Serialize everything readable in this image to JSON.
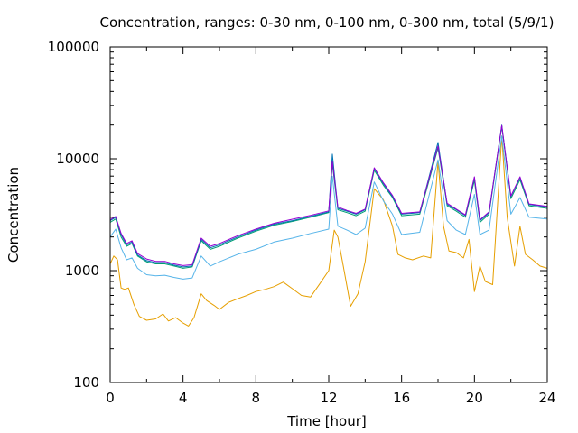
{
  "chart_data": {
    "type": "line",
    "title": "Concentration, ranges: 0-30 nm, 0-100 nm, 0-300 nm, total (5/9/1)",
    "xlabel": "Time [hour]",
    "ylabel": "Concentration",
    "xlim": [
      0,
      24
    ],
    "ylim": [
      100,
      100000
    ],
    "y_scale": "log",
    "x_ticks": [
      0,
      4,
      8,
      12,
      16,
      20,
      24
    ],
    "x_tick_labels": [
      "0",
      "4",
      "8",
      "12",
      "16",
      "20",
      "24"
    ],
    "y_ticks": [
      100,
      1000,
      10000,
      100000
    ],
    "y_tick_labels": [
      "100",
      "1000",
      "10000",
      "100000"
    ],
    "grid": false,
    "legend": "none",
    "series": [
      {
        "color": "#e69f00",
        "points": [
          [
            0,
            1150
          ],
          [
            0.2,
            1350
          ],
          [
            0.4,
            1250
          ],
          [
            0.6,
            700
          ],
          [
            0.8,
            680
          ],
          [
            1,
            700
          ],
          [
            1.3,
            500
          ],
          [
            1.6,
            390
          ],
          [
            2,
            360
          ],
          [
            2.5,
            370
          ],
          [
            2.9,
            410
          ],
          [
            3.2,
            355
          ],
          [
            3.6,
            380
          ],
          [
            4,
            340
          ],
          [
            4.3,
            320
          ],
          [
            4.6,
            380
          ],
          [
            5,
            620
          ],
          [
            5.3,
            540
          ],
          [
            5.7,
            490
          ],
          [
            6,
            450
          ],
          [
            6.5,
            520
          ],
          [
            7,
            560
          ],
          [
            7.5,
            600
          ],
          [
            8,
            650
          ],
          [
            8.5,
            680
          ],
          [
            9,
            720
          ],
          [
            9.5,
            790
          ],
          [
            10,
            690
          ],
          [
            10.5,
            600
          ],
          [
            11,
            580
          ],
          [
            11.5,
            760
          ],
          [
            12,
            1000
          ],
          [
            12.3,
            2300
          ],
          [
            12.5,
            2000
          ],
          [
            12.8,
            1100
          ],
          [
            13.2,
            480
          ],
          [
            13.6,
            620
          ],
          [
            14,
            1200
          ],
          [
            14.5,
            5400
          ],
          [
            15,
            4300
          ],
          [
            15.5,
            2500
          ],
          [
            15.8,
            1400
          ],
          [
            16.2,
            1300
          ],
          [
            16.6,
            1250
          ],
          [
            17.2,
            1350
          ],
          [
            17.6,
            1300
          ],
          [
            18,
            9500
          ],
          [
            18.3,
            2500
          ],
          [
            18.6,
            1500
          ],
          [
            19,
            1450
          ],
          [
            19.4,
            1300
          ],
          [
            19.7,
            1900
          ],
          [
            20,
            650
          ],
          [
            20.3,
            1100
          ],
          [
            20.6,
            800
          ],
          [
            21,
            750
          ],
          [
            21.5,
            16000
          ],
          [
            21.8,
            3000
          ],
          [
            22.2,
            1100
          ],
          [
            22.5,
            2500
          ],
          [
            22.8,
            1400
          ],
          [
            23.2,
            1250
          ],
          [
            23.6,
            1100
          ],
          [
            24,
            1050
          ]
        ]
      },
      {
        "color": "#56b4e9",
        "points": [
          [
            0,
            2000
          ],
          [
            0.3,
            2350
          ],
          [
            0.6,
            1600
          ],
          [
            0.9,
            1250
          ],
          [
            1.2,
            1300
          ],
          [
            1.5,
            1050
          ],
          [
            2,
            920
          ],
          [
            2.5,
            900
          ],
          [
            3,
            910
          ],
          [
            3.5,
            870
          ],
          [
            4,
            840
          ],
          [
            4.5,
            860
          ],
          [
            5,
            1350
          ],
          [
            5.5,
            1100
          ],
          [
            6,
            1200
          ],
          [
            7,
            1400
          ],
          [
            8,
            1550
          ],
          [
            9,
            1800
          ],
          [
            10,
            1950
          ],
          [
            11,
            2150
          ],
          [
            12,
            2350
          ],
          [
            12.2,
            7000
          ],
          [
            12.5,
            2500
          ],
          [
            13,
            2300
          ],
          [
            13.5,
            2100
          ],
          [
            14,
            2400
          ],
          [
            14.5,
            6200
          ],
          [
            15,
            4200
          ],
          [
            15.5,
            3200
          ],
          [
            16,
            2100
          ],
          [
            17,
            2200
          ],
          [
            18,
            9800
          ],
          [
            18.5,
            2800
          ],
          [
            19,
            2300
          ],
          [
            19.5,
            2100
          ],
          [
            20,
            4800
          ],
          [
            20.3,
            2100
          ],
          [
            20.8,
            2300
          ],
          [
            21.5,
            16000
          ],
          [
            22,
            3200
          ],
          [
            22.5,
            4500
          ],
          [
            23,
            3000
          ],
          [
            24,
            2900
          ]
        ]
      },
      {
        "color": "#009e73",
        "points": [
          [
            0,
            2700
          ],
          [
            0.3,
            2900
          ],
          [
            0.6,
            2000
          ],
          [
            0.9,
            1650
          ],
          [
            1.2,
            1750
          ],
          [
            1.5,
            1350
          ],
          [
            2,
            1200
          ],
          [
            2.5,
            1150
          ],
          [
            3,
            1150
          ],
          [
            3.5,
            1100
          ],
          [
            4,
            1050
          ],
          [
            4.5,
            1080
          ],
          [
            5,
            1850
          ],
          [
            5.5,
            1550
          ],
          [
            6,
            1650
          ],
          [
            7,
            1950
          ],
          [
            8,
            2250
          ],
          [
            9,
            2550
          ],
          [
            10,
            2750
          ],
          [
            11,
            3000
          ],
          [
            12,
            3300
          ],
          [
            12.2,
            9000
          ],
          [
            12.5,
            3500
          ],
          [
            13,
            3300
          ],
          [
            13.5,
            3100
          ],
          [
            14,
            3400
          ],
          [
            14.5,
            7900
          ],
          [
            15,
            5800
          ],
          [
            15.5,
            4500
          ],
          [
            16,
            3100
          ],
          [
            17,
            3200
          ],
          [
            18,
            12500
          ],
          [
            18.5,
            3800
          ],
          [
            19,
            3400
          ],
          [
            19.5,
            3000
          ],
          [
            20,
            6400
          ],
          [
            20.3,
            2700
          ],
          [
            20.8,
            3200
          ],
          [
            21.5,
            19500
          ],
          [
            22,
            4400
          ],
          [
            22.5,
            6500
          ],
          [
            23,
            3800
          ],
          [
            24,
            3600
          ]
        ]
      },
      {
        "color": "#0072b2",
        "points": [
          [
            0,
            2800
          ],
          [
            0.3,
            3000
          ],
          [
            0.6,
            2100
          ],
          [
            0.9,
            1700
          ],
          [
            1.2,
            1800
          ],
          [
            1.5,
            1380
          ],
          [
            2,
            1230
          ],
          [
            2.5,
            1180
          ],
          [
            3,
            1180
          ],
          [
            3.5,
            1120
          ],
          [
            4,
            1080
          ],
          [
            4.5,
            1100
          ],
          [
            5,
            1900
          ],
          [
            5.5,
            1600
          ],
          [
            6,
            1700
          ],
          [
            7,
            2000
          ],
          [
            8,
            2300
          ],
          [
            9,
            2600
          ],
          [
            10,
            2800
          ],
          [
            11,
            3050
          ],
          [
            12,
            3350
          ],
          [
            12.2,
            11000
          ],
          [
            12.5,
            3600
          ],
          [
            13,
            3400
          ],
          [
            13.5,
            3200
          ],
          [
            14,
            3500
          ],
          [
            14.5,
            8200
          ],
          [
            15,
            6000
          ],
          [
            15.5,
            4600
          ],
          [
            16,
            3200
          ],
          [
            17,
            3300
          ],
          [
            18,
            14000
          ],
          [
            18.5,
            3900
          ],
          [
            19,
            3500
          ],
          [
            19.5,
            3100
          ],
          [
            20,
            6800
          ],
          [
            20.3,
            2800
          ],
          [
            20.8,
            3300
          ],
          [
            21.5,
            20000
          ],
          [
            22,
            4600
          ],
          [
            22.5,
            6800
          ],
          [
            23,
            3900
          ],
          [
            24,
            3700
          ]
        ]
      },
      {
        "color": "#9400d3",
        "points": [
          [
            0,
            2850
          ],
          [
            0.3,
            3050
          ],
          [
            0.6,
            2150
          ],
          [
            0.9,
            1750
          ],
          [
            1.2,
            1850
          ],
          [
            1.5,
            1420
          ],
          [
            2,
            1270
          ],
          [
            2.5,
            1210
          ],
          [
            3,
            1210
          ],
          [
            3.5,
            1150
          ],
          [
            4,
            1110
          ],
          [
            4.5,
            1130
          ],
          [
            5,
            1950
          ],
          [
            5.5,
            1650
          ],
          [
            6,
            1750
          ],
          [
            7,
            2050
          ],
          [
            8,
            2350
          ],
          [
            9,
            2650
          ],
          [
            10,
            2880
          ],
          [
            11,
            3120
          ],
          [
            12,
            3420
          ],
          [
            12.2,
            9500
          ],
          [
            12.5,
            3700
          ],
          [
            13,
            3450
          ],
          [
            13.5,
            3250
          ],
          [
            14,
            3550
          ],
          [
            14.5,
            8300
          ],
          [
            15,
            6100
          ],
          [
            15.5,
            4700
          ],
          [
            16,
            3250
          ],
          [
            17,
            3350
          ],
          [
            18,
            13000
          ],
          [
            18.5,
            4000
          ],
          [
            19,
            3550
          ],
          [
            19.5,
            3150
          ],
          [
            20,
            6900
          ],
          [
            20.3,
            2850
          ],
          [
            20.8,
            3350
          ],
          [
            21.5,
            19800
          ],
          [
            22,
            4650
          ],
          [
            22.5,
            6900
          ],
          [
            23,
            3950
          ],
          [
            24,
            3750
          ]
        ]
      }
    ]
  }
}
